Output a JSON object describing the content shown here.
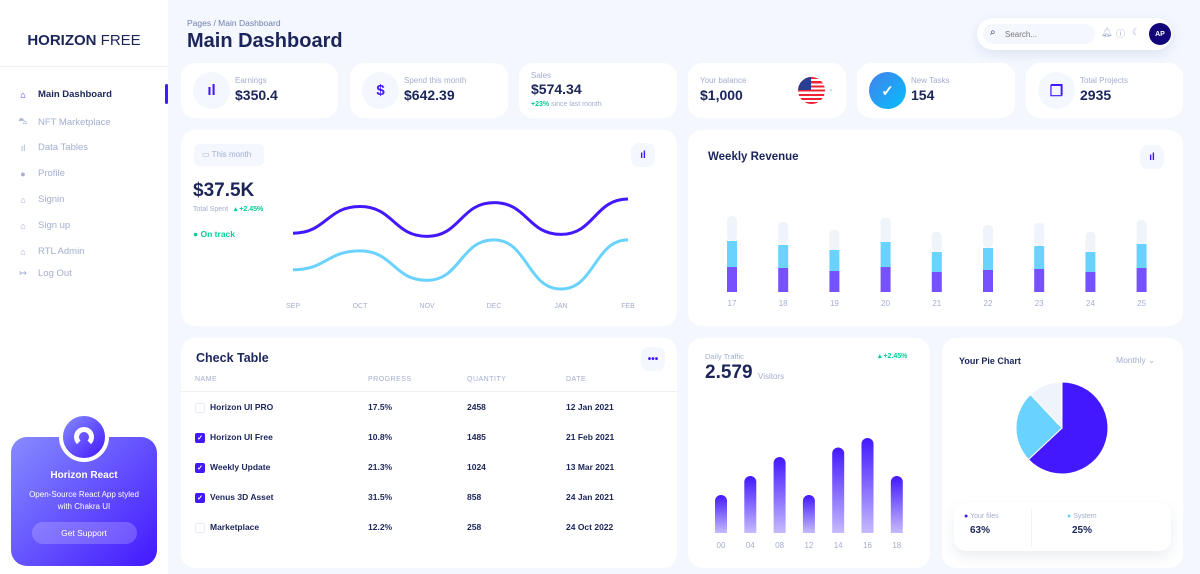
{
  "sidebar": {
    "brand_bold": "HORIZON",
    "brand_light": "FREE",
    "items": [
      {
        "label": "Main Dashboard",
        "icon": "home-icon",
        "active": true
      },
      {
        "label": "NFT Marketplace",
        "icon": "cart-icon"
      },
      {
        "label": "Data Tables",
        "icon": "bar-chart-icon"
      },
      {
        "label": "Profile",
        "icon": "user-icon"
      },
      {
        "label": "Signin",
        "icon": "home-icon"
      },
      {
        "label": "Sign up",
        "icon": "home-icon"
      },
      {
        "label": "RTL Admin",
        "icon": "home-icon"
      },
      {
        "label": "Log Out",
        "icon": "logout-icon"
      }
    ],
    "promo": {
      "title": "Horizon React",
      "text": "Open-Source React App styled with Chakra UI",
      "button": "Get Support"
    }
  },
  "header": {
    "breadcrumb": "Pages  /  Main Dashboard",
    "title": "Main Dashboard",
    "search_placeholder": "Search...",
    "avatar": "AP"
  },
  "stats": [
    {
      "label": "Earnings",
      "value": "$350.4",
      "icon": "bar-chart-icon"
    },
    {
      "label": "Spend this month",
      "value": "$642.39",
      "icon": "dollar-icon"
    },
    {
      "label": "Sales",
      "value": "$574.34",
      "delta": "+23%",
      "delta_text": "since last month"
    },
    {
      "label": "Your balance",
      "value": "$1,000",
      "icon": "us-flag-icon"
    },
    {
      "label": "New Tasks",
      "value": "154",
      "icon": "task-check-icon"
    },
    {
      "label": "Total Projects",
      "value": "2935",
      "icon": "document-icon"
    }
  ],
  "colors": {
    "primary": "#4318ff",
    "cyan": "#6ad2ff",
    "navy": "#1b2559",
    "green": "#05cd99",
    "bg": "#f4f7fe"
  },
  "chart_data": [
    {
      "type": "line",
      "period_label": "This month",
      "value": "$37.5K",
      "value_label": "Total Spent",
      "delta": "+2.45%",
      "status": "On track",
      "categories": [
        "SEP",
        "OCT",
        "NOV",
        "DEC",
        "JAN",
        "FEB"
      ],
      "series": [
        {
          "color": "#4318ff",
          "values": [
            210,
            278,
            202,
            288,
            207,
            297
          ]
        },
        {
          "color": "#6ad2ff",
          "values": [
            117,
            165,
            90,
            193,
            68,
            193
          ]
        }
      ]
    },
    {
      "type": "bar",
      "stacked": true,
      "title": "Weekly Revenue",
      "categories": [
        "17",
        "18",
        "19",
        "20",
        "21",
        "22",
        "23",
        "24",
        "25"
      ],
      "series": [
        {
          "color": "#7551ff",
          "values": [
            25,
            24,
            21,
            25,
            20,
            22,
            23,
            20,
            24
          ]
        },
        {
          "color": "#6ad2ff",
          "values": [
            26,
            23,
            21,
            25,
            20,
            22,
            23,
            20,
            24
          ]
        },
        {
          "color": "#eff4fb",
          "values": [
            25,
            23,
            20,
            24,
            20,
            23,
            23,
            20,
            24
          ]
        }
      ]
    },
    {
      "type": "bar",
      "label": "Daily Traffic",
      "value": "2.579",
      "unit": "Visitors",
      "delta": "+2.45%",
      "categories": [
        "00",
        "04",
        "08",
        "12",
        "14",
        "16",
        "18"
      ],
      "values": [
        20,
        30,
        40,
        20,
        45,
        50,
        30
      ]
    },
    {
      "type": "pie",
      "title": "Your Pie Chart",
      "period": "Monthly",
      "slices": [
        {
          "name": "Your files",
          "value": 63,
          "label": "63%",
          "color": "#4318ff"
        },
        {
          "name": "System",
          "value": 25,
          "label": "25%",
          "color": "#6ad2ff"
        },
        {
          "value": 12,
          "color": "#eff4fb"
        }
      ]
    }
  ],
  "check_table": {
    "title": "Check Table",
    "columns": [
      "NAME",
      "PROGRESS",
      "QUANTITY",
      "DATE"
    ],
    "rows": [
      {
        "checked": false,
        "name": "Horizon UI PRO",
        "progress": "17.5%",
        "quantity": "2458",
        "date": "12 Jan 2021"
      },
      {
        "checked": true,
        "name": "Horizon UI Free",
        "progress": "10.8%",
        "quantity": "1485",
        "date": "21 Feb 2021"
      },
      {
        "checked": true,
        "name": "Weekly Update",
        "progress": "21.3%",
        "quantity": "1024",
        "date": "13 Mar 2021"
      },
      {
        "checked": true,
        "name": "Venus 3D Asset",
        "progress": "31.5%",
        "quantity": "858",
        "date": "24 Jan 2021"
      },
      {
        "checked": false,
        "name": "Marketplace",
        "progress": "12.2%",
        "quantity": "258",
        "date": "24 Oct 2022"
      }
    ]
  }
}
